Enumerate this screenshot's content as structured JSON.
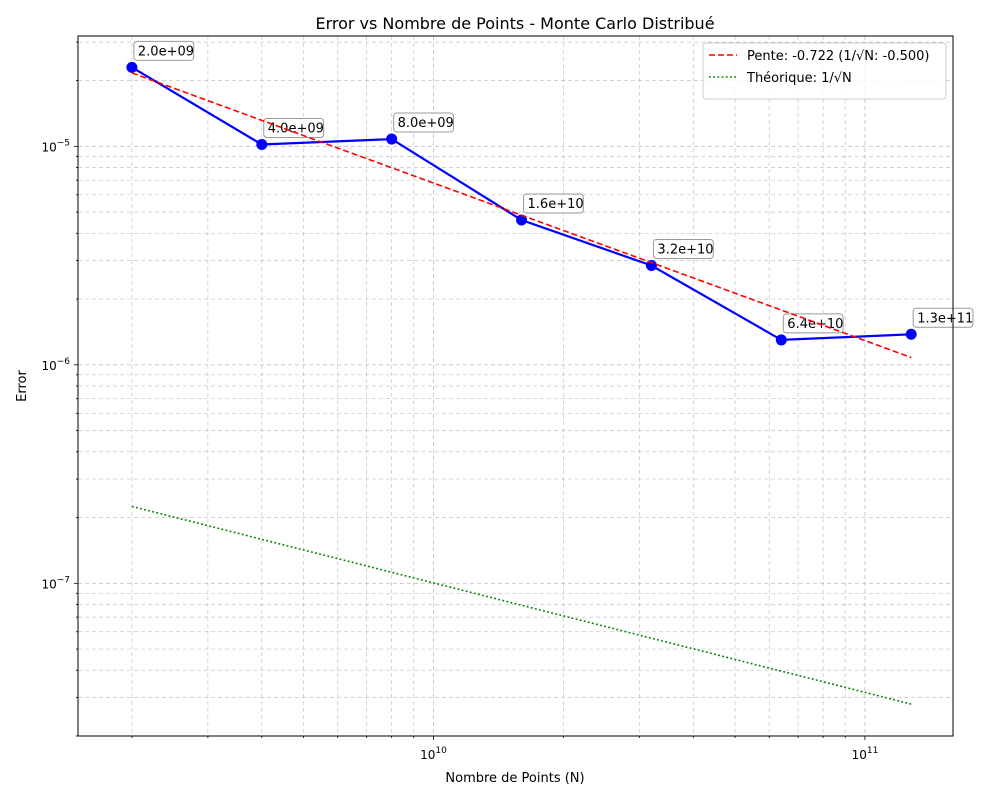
{
  "chart_data": {
    "type": "line",
    "title": "Error vs Nombre de Points - Monte Carlo Distribué",
    "xlabel": "Nombre de Points (N)",
    "ylabel": "Error",
    "x_scale": "log",
    "y_scale": "log",
    "xlim": [
      1500000000.0,
      160000000000.0
    ],
    "ylim": [
      2e-08,
      3.2e-05
    ],
    "grid": true,
    "legend_position": "top-right",
    "x_ticks": [
      {
        "value": 10000000000.0,
        "base": "10",
        "exp": "10"
      },
      {
        "value": 100000000000.0,
        "base": "10",
        "exp": "11"
      }
    ],
    "y_ticks": [
      {
        "value": 1e-07,
        "base": "10",
        "exp": "−7"
      },
      {
        "value": 1e-06,
        "base": "10",
        "exp": "−6"
      },
      {
        "value": 1e-05,
        "base": "10",
        "exp": "−5"
      }
    ],
    "series": [
      {
        "name": "",
        "kind": "measured",
        "color": "#0000ff",
        "x": [
          2000000000.0,
          4000000000.0,
          8000000000.0,
          16000000000.0,
          32000000000.0,
          64000000000.0,
          128000000000.0
        ],
        "y": [
          2.3e-05,
          1.02e-05,
          1.08e-05,
          4.6e-06,
          2.85e-06,
          1.3e-06,
          1.38e-06
        ],
        "point_labels": [
          "2.0e+09",
          "4.0e+09",
          "8.0e+09",
          "1.6e+10",
          "3.2e+10",
          "6.4e+10",
          "1.3e+11"
        ]
      },
      {
        "name": "Pente: -0.722 (1/√N: -0.500)",
        "kind": "fit",
        "color": "#ff0000",
        "style": "dashed",
        "x": [
          2000000000.0,
          128000000000.0
        ],
        "y": [
          2.17e-05,
          1.08e-06
        ]
      },
      {
        "name": "Théorique: 1/√N",
        "kind": "theory",
        "color": "#008000",
        "style": "dotted",
        "x": [
          2000000000.0,
          128000000000.0
        ],
        "y": [
          2.25e-07,
          2.8e-08
        ]
      }
    ]
  }
}
